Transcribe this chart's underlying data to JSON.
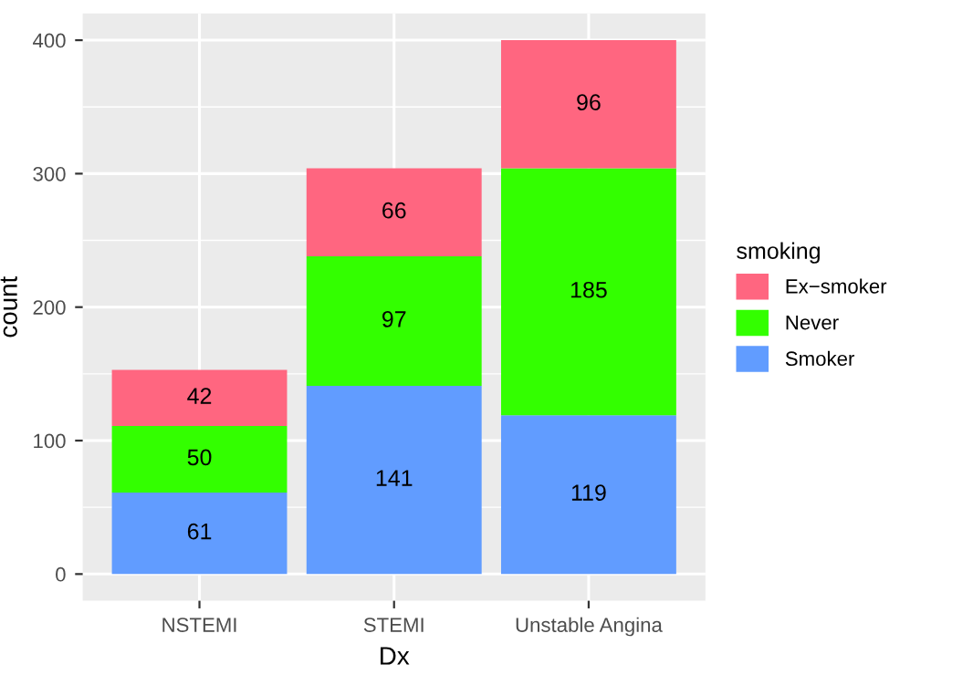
{
  "chart_data": {
    "type": "bar",
    "stacked": true,
    "xlabel": "Dx",
    "ylabel": "count",
    "legend_title": "smoking",
    "categories": [
      "NSTEMI",
      "STEMI",
      "Unstable Angina"
    ],
    "series": [
      {
        "name": "Smoker",
        "color": "#619cff",
        "values": [
          61,
          141,
          119
        ]
      },
      {
        "name": "Never",
        "color": "#33ff00",
        "values": [
          50,
          97,
          185
        ]
      },
      {
        "name": "Ex−smoker",
        "color": "#ff6680",
        "values": [
          42,
          66,
          96
        ]
      }
    ],
    "ylim": [
      -20,
      420
    ],
    "yticks": [
      0,
      100,
      200,
      300,
      400
    ],
    "grid": true,
    "legend": "right",
    "data_labels": true
  }
}
